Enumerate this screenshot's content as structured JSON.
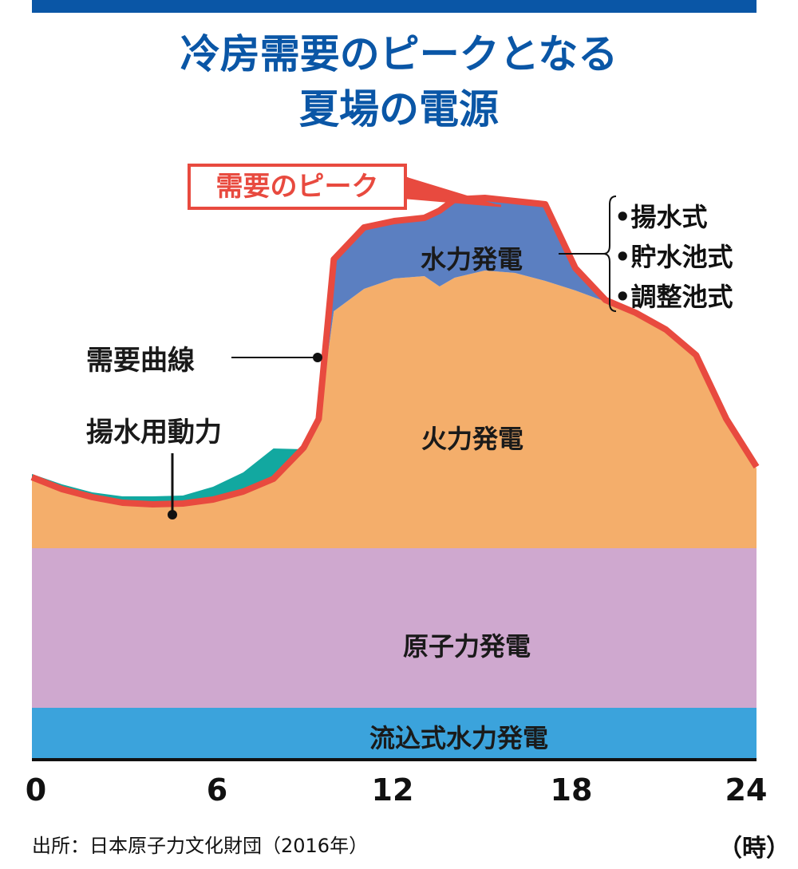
{
  "title": {
    "line1": "冷房需要のピークとなる",
    "line2": "夏場の電源"
  },
  "colors": {
    "title": "#0a56a6",
    "demand_line": "#e84a3f",
    "run_of_river": "#3ba3dc",
    "nuclear": "#cfa8cf",
    "thermal": "#f4ae6b",
    "hydro": "#5b7fc1",
    "pumping": "#12a8a0"
  },
  "labels": {
    "peak": "需要のピーク",
    "demand_curve": "需要曲線",
    "pumping_power": "揚水用動力",
    "hydro": "水力発電",
    "hydro_types": [
      "•揚水式",
      "•貯水池式",
      "•調整池式"
    ],
    "thermal": "火力発電",
    "nuclear": "原子力発電",
    "run_of_river": "流込式水力発電"
  },
  "source": "出所：日本原子力文化財団（2016年）",
  "unit": "（時）",
  "chart_data": {
    "type": "area",
    "x_ticks": [
      "0",
      "6",
      "12",
      "18",
      "24"
    ],
    "xlim": [
      0,
      24
    ],
    "x": [
      0,
      1,
      2,
      3,
      4,
      5,
      6,
      7,
      8,
      9,
      9.5,
      10,
      11,
      12,
      13,
      13.5,
      14,
      15,
      16,
      17,
      18,
      19,
      20,
      21,
      22,
      23,
      24
    ],
    "stack_levels": {
      "run_of_river_top": 65,
      "nuclear_top": 265,
      "thermal_top": [
        352,
        337,
        327,
        320,
        318,
        319,
        324,
        334,
        350,
        389,
        425,
        562,
        590,
        603,
        606,
        593,
        604,
        613,
        610,
        600,
        588,
        574,
        558,
        537,
        505,
        425,
        365
      ],
      "hydro_top": [
        352,
        337,
        327,
        320,
        318,
        319,
        324,
        334,
        350,
        389,
        425,
        625,
        665,
        673,
        677,
        686,
        700,
        702,
        698,
        694,
        614,
        574,
        558,
        537,
        505,
        425,
        365
      ],
      "pumping_top": [
        358,
        345,
        335,
        330,
        330,
        331,
        342,
        360,
        390,
        389,
        425,
        625,
        665,
        673,
        677,
        686,
        700,
        702,
        698,
        694,
        614,
        574,
        558,
        537,
        505,
        425,
        365
      ]
    }
  }
}
